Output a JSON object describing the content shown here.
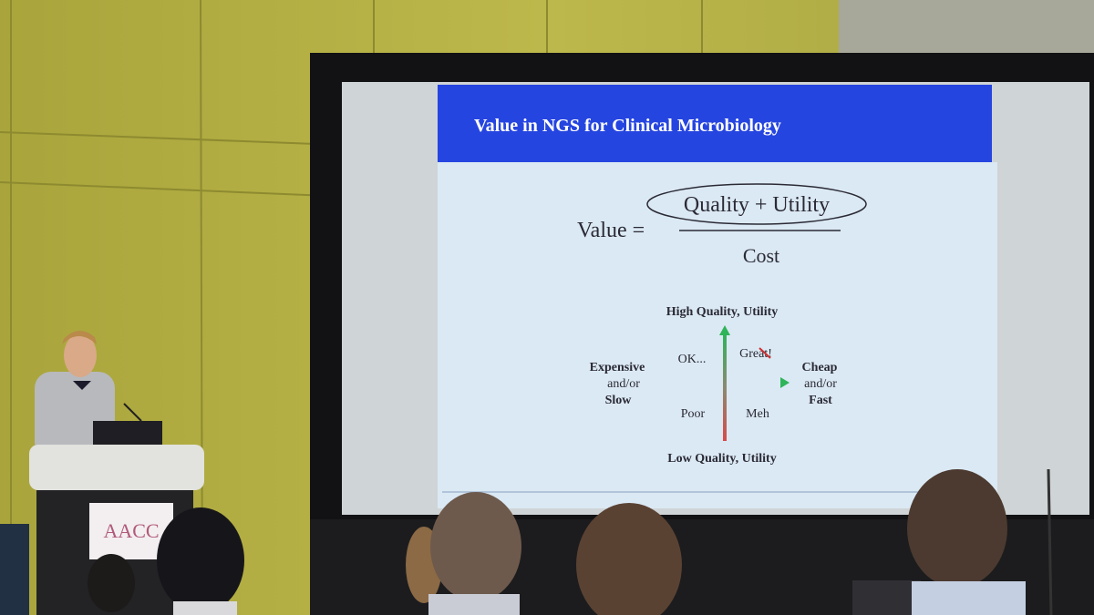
{
  "slide": {
    "title": "Value in NGS for Clinical Microbiology",
    "formula": {
      "lhs": "Value =",
      "numerator": "Quality + Utility",
      "denominator": "Cost"
    },
    "quadrant": {
      "top": "High Quality, Utility",
      "bottom": "Low Quality, Utility",
      "left": [
        "Expensive",
        "and/or",
        "Slow"
      ],
      "right": [
        "Cheap",
        "and/or",
        "Fast"
      ],
      "top_left": "OK...",
      "top_right": "Great!",
      "bottom_left": "Poor",
      "bottom_right": "Meh"
    }
  },
  "podium": {
    "sign": "AACC"
  }
}
